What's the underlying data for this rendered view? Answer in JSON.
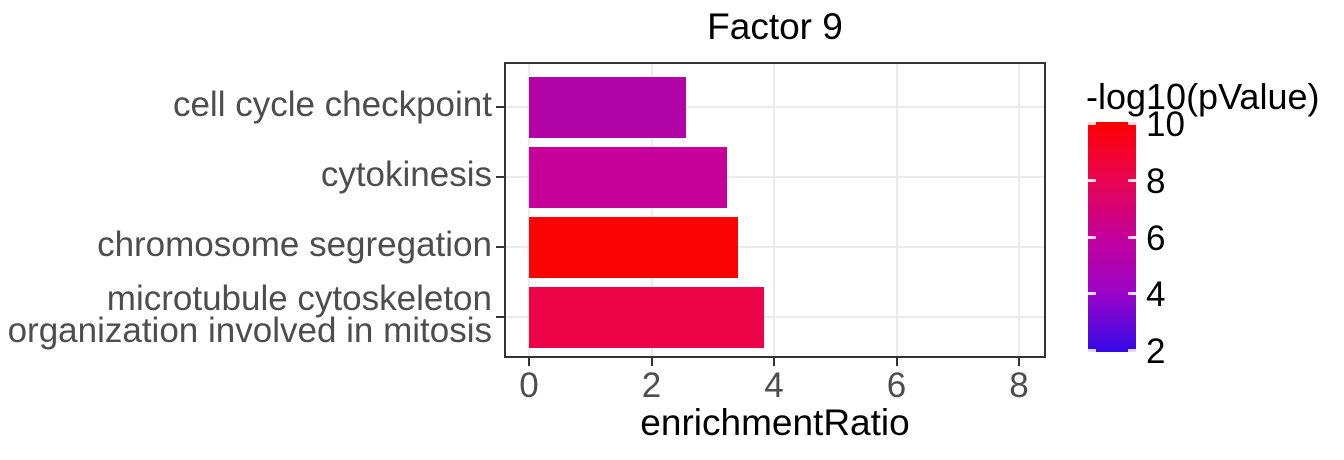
{
  "title": "Factor 9",
  "x_axis": {
    "title": "enrichmentRatio",
    "tick_labels": [
      "0",
      "2",
      "4",
      "6",
      "8"
    ]
  },
  "y_axis": {
    "tick_labels": [
      [
        "cell cycle checkpoint"
      ],
      [
        "cytokinesis"
      ],
      [
        "chromosome segregation"
      ],
      [
        "microtubule cytoskeleton",
        "organization involved in mitosis"
      ]
    ]
  },
  "legend": {
    "title": "-log10(pValue)",
    "tick_labels": [
      "10",
      "8",
      "6",
      "4",
      "2"
    ],
    "gradient_stops_top_to_bottom": [
      "#ff0000",
      "#e80450",
      "#c4019b",
      "#9a04c8",
      "#3509e8"
    ]
  },
  "colors": {
    "panel_border": "#333333",
    "gridline": "#ebebeb",
    "axis_text": "#4d4d4d",
    "title_text": "#000000",
    "background": "#ffffff"
  },
  "chart_data": {
    "type": "bar",
    "orientation": "horizontal",
    "title": "Factor 9",
    "xlabel": "enrichmentRatio",
    "ylabel": "",
    "xlim": [
      0,
      8
    ],
    "x_ticks": [
      0,
      2,
      4,
      6,
      8
    ],
    "grid": "major-only",
    "categories_top_to_bottom": [
      "cell cycle checkpoint",
      "cytokinesis",
      "chromosome segregation",
      "microtubule cytoskeleton organization involved in mitosis"
    ],
    "values": [
      2.57,
      3.24,
      3.42,
      3.83
    ],
    "color_metric": "-log10(pValue)",
    "color_values": [
      5.4,
      6.1,
      9.9,
      8.0
    ],
    "bar_colors": [
      "#b203a6",
      "#c60099",
      "#fc0303",
      "#ec0348"
    ],
    "colorbar": {
      "title": "-log10(pValue)",
      "min": 2,
      "max": 10,
      "ticks": [
        2,
        4,
        6,
        8,
        10
      ],
      "low_color": "#3509e8",
      "high_color": "#ff0000",
      "position": "right"
    }
  }
}
